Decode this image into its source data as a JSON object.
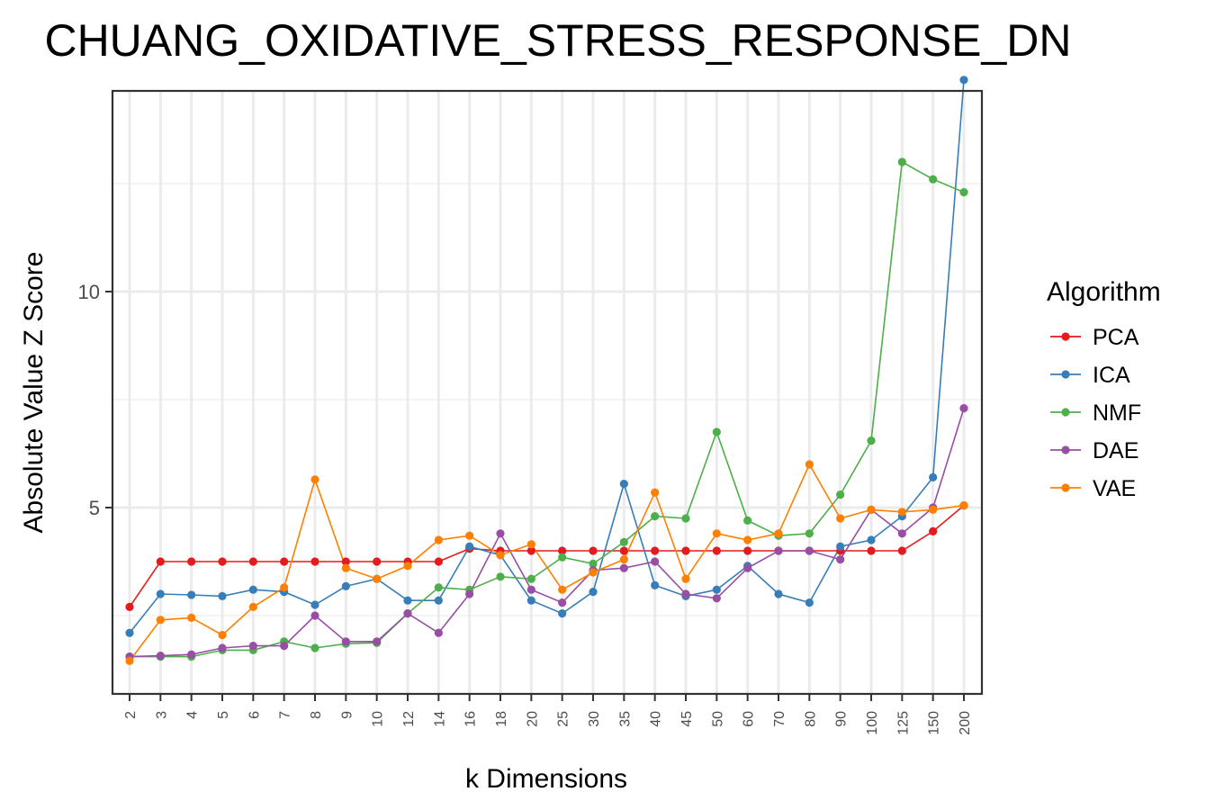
{
  "chart_data": {
    "type": "line",
    "title": "CHUANG_OXIDATIVE_STRESS_RESPONSE_DN",
    "xlabel": "k Dimensions",
    "ylabel": "Absolute Value Z Score",
    "categories": [
      "2",
      "3",
      "4",
      "5",
      "6",
      "7",
      "8",
      "9",
      "10",
      "12",
      "14",
      "16",
      "18",
      "20",
      "25",
      "30",
      "35",
      "40",
      "45",
      "50",
      "60",
      "70",
      "80",
      "90",
      "100",
      "125",
      "150",
      "200"
    ],
    "ylim": [
      1,
      15.5
    ],
    "yticks": [
      5,
      10
    ],
    "grid": true,
    "legend": {
      "title": "Algorithm",
      "position": "right"
    },
    "series": [
      {
        "name": "PCA",
        "color": "#e41a1c",
        "values": [
          2.7,
          3.75,
          3.75,
          3.75,
          3.75,
          3.75,
          3.75,
          3.75,
          3.75,
          3.75,
          3.75,
          4.05,
          4.0,
          4.0,
          4.0,
          4.0,
          4.0,
          4.0,
          4.0,
          4.0,
          4.0,
          4.0,
          4.0,
          4.0,
          4.0,
          4.0,
          4.45,
          5.05
        ]
      },
      {
        "name": "ICA",
        "color": "#377eb8",
        "values": [
          2.1,
          3.0,
          2.98,
          2.95,
          3.1,
          3.05,
          2.75,
          3.18,
          3.35,
          2.85,
          2.85,
          4.1,
          3.9,
          2.85,
          2.55,
          3.05,
          5.55,
          3.2,
          2.95,
          3.1,
          3.65,
          3.0,
          2.8,
          4.1,
          4.25,
          4.8,
          5.7,
          14.9
        ]
      },
      {
        "name": "NMF",
        "color": "#4daf4a",
        "values": [
          1.55,
          1.55,
          1.55,
          1.7,
          1.7,
          1.9,
          1.75,
          1.85,
          1.87,
          2.55,
          3.15,
          3.1,
          3.4,
          3.35,
          3.85,
          3.7,
          4.2,
          4.8,
          4.75,
          6.75,
          4.7,
          4.35,
          4.4,
          5.3,
          6.55,
          13.0,
          12.6,
          12.3
        ]
      },
      {
        "name": "DAE",
        "color": "#984ea3",
        "values": [
          1.55,
          1.57,
          1.6,
          1.75,
          1.8,
          1.8,
          2.5,
          1.9,
          1.9,
          2.55,
          2.1,
          3.0,
          4.4,
          3.1,
          2.8,
          3.55,
          3.6,
          3.75,
          3.0,
          2.9,
          3.6,
          4.0,
          4.0,
          3.8,
          4.95,
          4.4,
          5.0,
          7.3
        ]
      },
      {
        "name": "VAE",
        "color": "#ff7f00",
        "values": [
          1.45,
          2.4,
          2.45,
          2.05,
          2.7,
          3.15,
          5.65,
          3.6,
          3.35,
          3.65,
          4.25,
          4.35,
          3.9,
          4.15,
          3.1,
          3.5,
          3.8,
          5.35,
          3.35,
          4.4,
          4.25,
          4.4,
          6.0,
          4.75,
          4.95,
          4.9,
          4.95,
          5.05
        ]
      }
    ]
  }
}
